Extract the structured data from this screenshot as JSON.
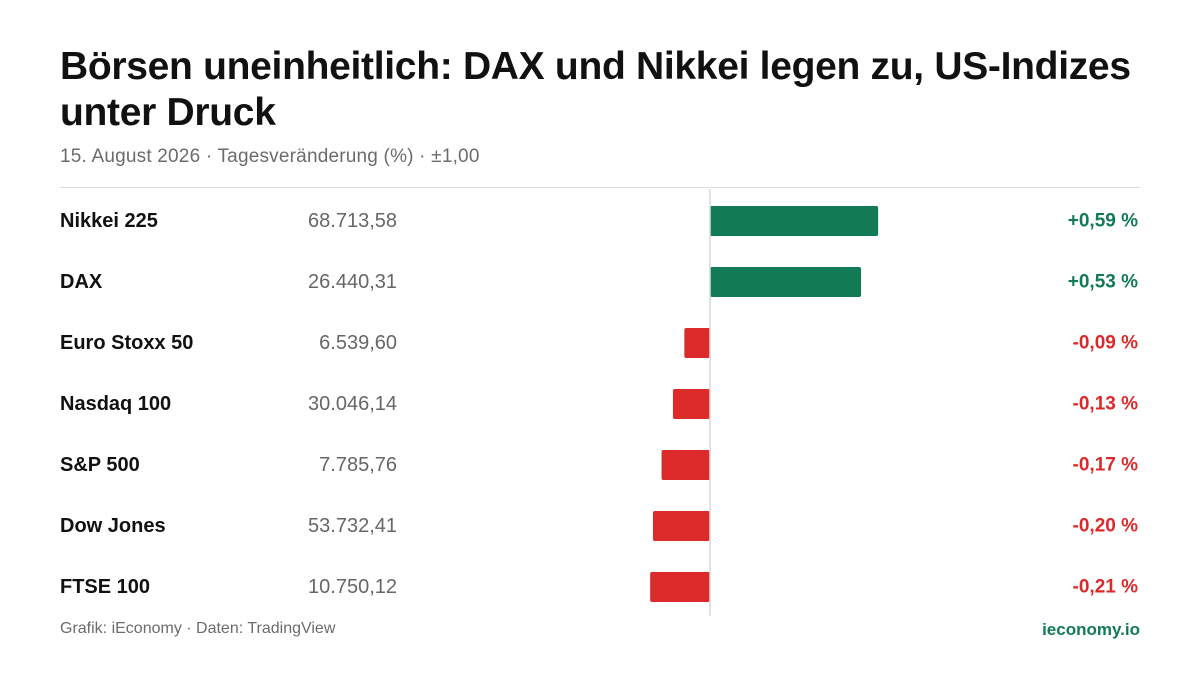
{
  "header": {
    "title": "Börsen uneinheitlich: DAX und Nikkei legen zu, US-Indizes unter Druck",
    "subtitle": "15. August 2026 · Tagesveränderung (%) · ±1,00"
  },
  "footer": {
    "source": "Grafik: iEconomy · Daten: TradingView",
    "brand": "ieconomy.io"
  },
  "colors": {
    "positive": "#127a55",
    "negative": "#dc2a2a",
    "label": "#111111",
    "level": "#666666",
    "axis": "#d9d9d9"
  },
  "chart_data": {
    "type": "bar",
    "orientation": "horizontal",
    "categories": [
      "Nikkei 225",
      "DAX",
      "Euro Stoxx 50",
      "Nasdaq 100",
      "S&P 500",
      "Dow Jones",
      "FTSE 100"
    ],
    "levels": [
      "68.713,58",
      "26.440,31",
      "6.539,60",
      "30.046,14",
      "7.785,76",
      "53.732,41",
      "10.750,12"
    ],
    "values": [
      0.59,
      0.53,
      -0.09,
      -0.13,
      -0.17,
      -0.2,
      -0.21
    ],
    "value_labels": [
      "+0,59 %",
      "+0,53 %",
      "-0,09 %",
      "-0,13 %",
      "-0,17 %",
      "-0,20 %",
      "-0,21 %"
    ],
    "xlim": [
      -1,
      1
    ],
    "grid": false,
    "legend": "none"
  }
}
